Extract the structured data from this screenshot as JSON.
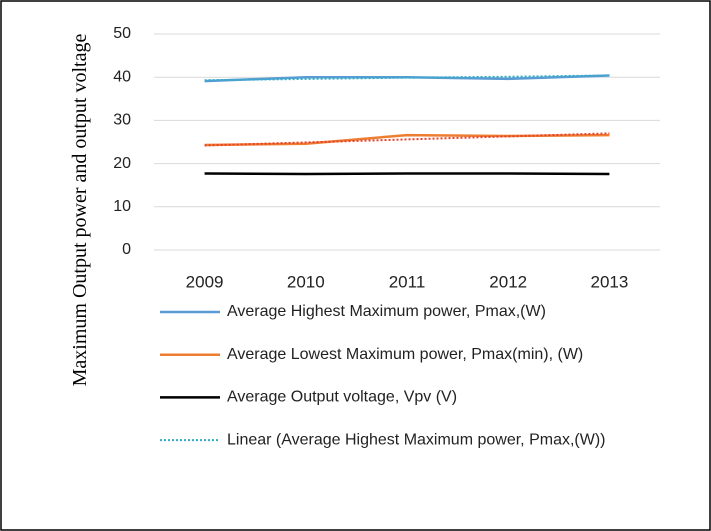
{
  "chart_data": {
    "type": "line",
    "ylabel": "Maximum Output power and output voltage",
    "categories": [
      "2009",
      "2010",
      "2011",
      "2012",
      "2013"
    ],
    "ylim": [
      0,
      50
    ],
    "yticks": [
      0,
      10,
      20,
      30,
      40,
      50
    ],
    "grid": true,
    "series": [
      {
        "name": "Average Highest Maximum power, Pmax,(W)",
        "color": "#5b9bd5",
        "style": "solid",
        "values": [
          39.1,
          40.0,
          40.0,
          39.6,
          40.4
        ]
      },
      {
        "name": "Average Lowest Maximum power, Pmax(min), (W)",
        "color": "#ed7d31",
        "style": "solid",
        "values": [
          24.3,
          24.6,
          26.6,
          26.4,
          26.6
        ]
      },
      {
        "name": "Average Output voltage, Vpv (V)",
        "color": "#000000",
        "style": "solid",
        "values": [
          17.7,
          17.6,
          17.7,
          17.7,
          17.6
        ]
      },
      {
        "name": "Linear (Average Highest Maximum power, Pmax,(W))",
        "color": "#2eaec6",
        "style": "dotted",
        "values": [
          39.3,
          39.6,
          39.9,
          40.1,
          40.4
        ]
      },
      {
        "color": "#e8402a",
        "style": "dotted",
        "values": [
          24.2,
          24.9,
          25.6,
          26.3,
          27.0
        ]
      }
    ]
  }
}
